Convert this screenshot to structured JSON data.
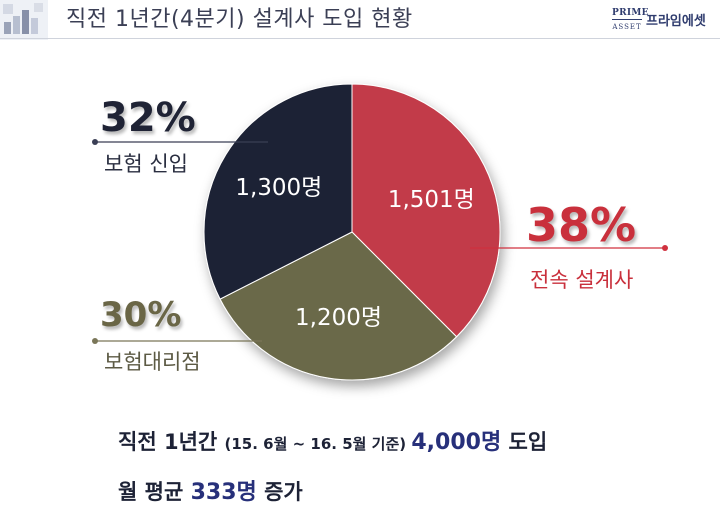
{
  "header": {
    "title": "직전 1년간(4분기) 설계사 도입 현황",
    "logo_mark_line1": "PRIME",
    "logo_mark_line2": "ASSET",
    "logo_text": "프라임에셋"
  },
  "chart_data": {
    "type": "pie",
    "title": "",
    "slices": [
      {
        "label": "보험 신입",
        "percent_text": "32%",
        "value_text": "1,300명",
        "value": 1300,
        "percent": 32,
        "color": "#1f2335"
      },
      {
        "label": "전속 설계사",
        "percent_text": "38%",
        "value_text": "1,501명",
        "value": 1501,
        "percent": 38,
        "color": "#c23b48"
      },
      {
        "label": "보험대리점",
        "percent_text": "30%",
        "value_text": "1,200명",
        "value": 1200,
        "percent": 30,
        "color": "#6b6948"
      }
    ],
    "leader_line_colors": {
      "dark": "#3a3f55",
      "red": "#d0313f",
      "olive": "#7a7658"
    }
  },
  "summary": {
    "line1_a": "직전 1년간 ",
    "line1_b": "(15. 6월 ~ 16. 5월 기준) ",
    "line1_c": "4,000명",
    "line1_d": " 도입",
    "line2_a": "월 평균 ",
    "line2_b": "333명",
    "line2_c": " 증가"
  }
}
